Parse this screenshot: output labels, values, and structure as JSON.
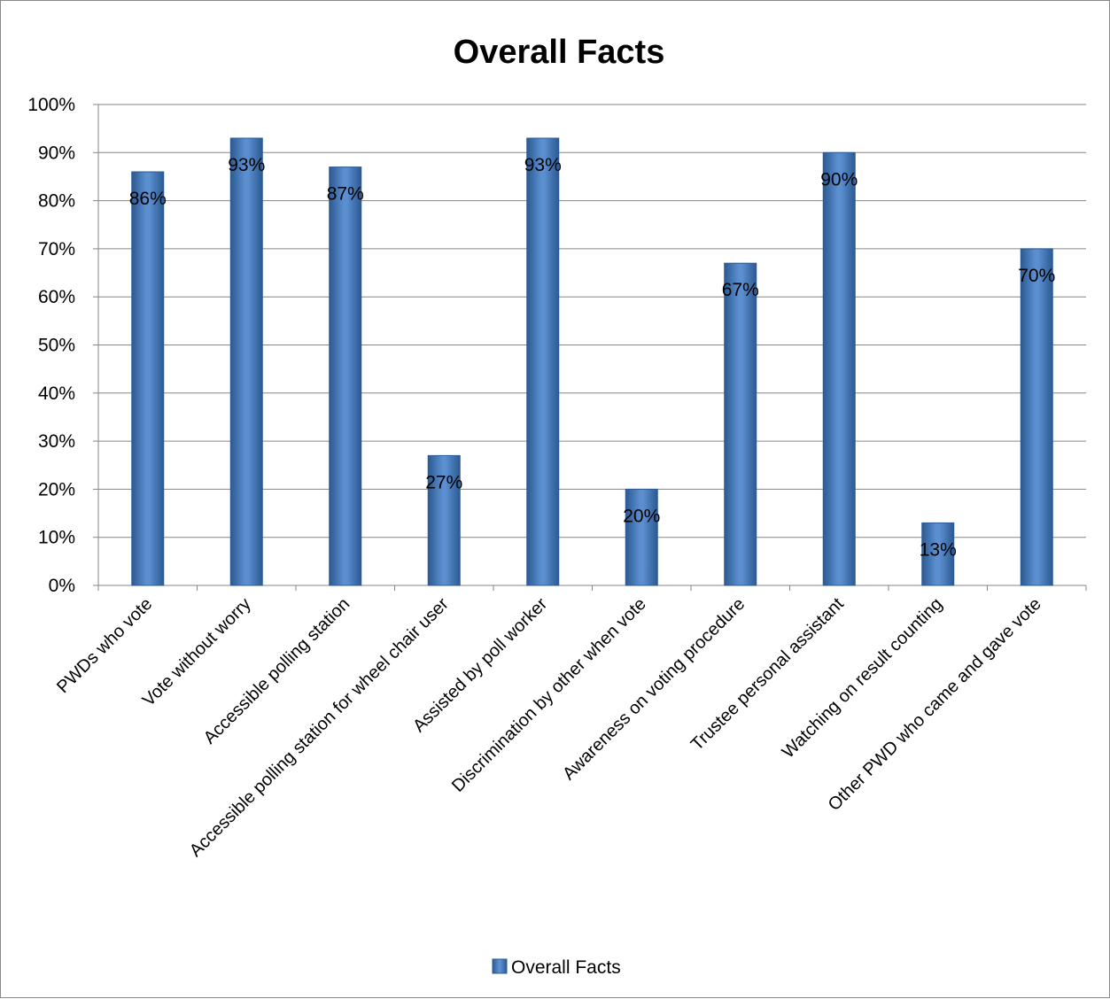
{
  "chart_data": {
    "type": "bar",
    "title": "Overall Facts",
    "categories": [
      "PWDs who vote",
      "Vote without worry",
      "Accessible polling station",
      "Accessible polling station for wheel chair user",
      "Assisted by poll worker",
      "Discrimination by other when vote",
      "Awareness on voting procedure",
      "Trustee personal assistant",
      "Watching on result counting",
      "Other PWD who came and gave vote"
    ],
    "series": [
      {
        "name": "Overall Facts",
        "values": [
          0.86,
          0.93,
          0.87,
          0.27,
          0.93,
          0.2,
          0.67,
          0.9,
          0.13,
          0.7
        ],
        "data_labels": [
          "86%",
          "93%",
          "87%",
          "27%",
          "93%",
          "20%",
          "67%",
          "90%",
          "13%",
          "70%"
        ]
      }
    ],
    "yticks": [
      "0%",
      "10%",
      "20%",
      "30%",
      "40%",
      "50%",
      "60%",
      "70%",
      "80%",
      "90%",
      "100%"
    ],
    "ylim": [
      0,
      1
    ],
    "grid": true,
    "legend_position": "bottom",
    "colors": {
      "bar": "#4a7ebb",
      "bar_dark": "#2c5a92",
      "bar_light": "#8db3e2",
      "grid": "#868686",
      "axis": "#868686"
    }
  }
}
